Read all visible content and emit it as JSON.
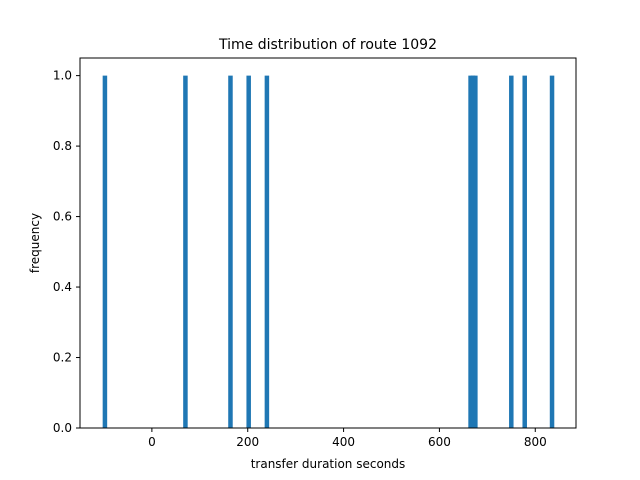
{
  "chart_data": {
    "type": "bar",
    "title": "Time distribution of route 1092",
    "xlabel": "transfer duration seconds",
    "ylabel": "frequency",
    "xlim": [
      -150,
      885
    ],
    "ylim": [
      0,
      1.05
    ],
    "xticks": [
      0,
      200,
      400,
      600,
      800
    ],
    "xtick_labels": [
      "0",
      "200",
      "400",
      "600",
      "800"
    ],
    "yticks": [
      0.0,
      0.2,
      0.4,
      0.6,
      0.8,
      1.0
    ],
    "ytick_labels": [
      "0.0",
      "0.2",
      "0.4",
      "0.6",
      "0.8",
      "1.0"
    ],
    "grid": false,
    "bar_color": "#1f77b4",
    "bin_width": 9.4,
    "bars": [
      {
        "x": -98,
        "value": 1
      },
      {
        "x": 70,
        "value": 1
      },
      {
        "x": 164,
        "value": 1
      },
      {
        "x": 202,
        "value": 1
      },
      {
        "x": 240,
        "value": 1
      },
      {
        "x": 665,
        "value": 1
      },
      {
        "x": 670,
        "value": 1
      },
      {
        "x": 675,
        "value": 1
      },
      {
        "x": 750,
        "value": 1
      },
      {
        "x": 778,
        "value": 1
      },
      {
        "x": 835,
        "value": 1
      }
    ]
  }
}
